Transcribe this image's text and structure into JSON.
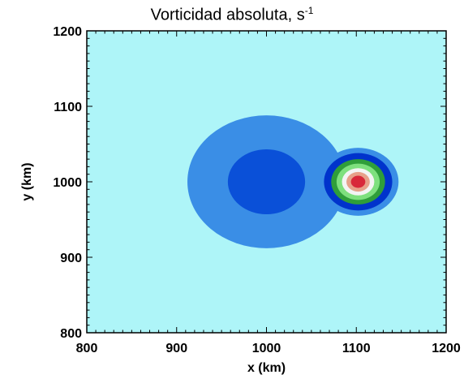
{
  "chart_data": {
    "type": "heatmap",
    "title": "Vorticidad absoluta, s",
    "title_superscript": "-1",
    "xlabel": "x (km)",
    "ylabel": "y (km)",
    "xlim": [
      800,
      1200
    ],
    "ylim": [
      800,
      1200
    ],
    "x_ticks": [
      800,
      900,
      1000,
      1100,
      1200
    ],
    "y_ticks": [
      800,
      900,
      1000,
      1100,
      1200
    ],
    "grid": false,
    "colors": {
      "background": "#aef5f8",
      "level_1": "#3a8ee6",
      "level_2": "#0a50d8",
      "ring_blue": "#0033cc",
      "ring_green_dark": "#2f9e3a",
      "ring_green_light": "#7ee07e",
      "ring_white": "#f4f4f4",
      "ring_salmon": "#e7a08a",
      "core_red": "#d8283a"
    },
    "features": [
      {
        "name": "large-vortex-outer",
        "center": [
          1000,
          1000
        ],
        "radius": 88,
        "color": "#3a8ee6"
      },
      {
        "name": "large-vortex-inner",
        "center": [
          1000,
          1000
        ],
        "radius": 43,
        "color": "#0a50d8"
      },
      {
        "name": "small-vortex-outer",
        "center": [
          1102,
          1000
        ],
        "radius": 45,
        "color": "#3a8ee6"
      },
      {
        "name": "small-vortex-ring-1",
        "center": [
          1102,
          1000
        ],
        "radius": 38,
        "color": "#0033cc"
      },
      {
        "name": "small-vortex-ring-2",
        "center": [
          1102,
          1000
        ],
        "radius": 30,
        "color": "#2f9e3a"
      },
      {
        "name": "small-vortex-ring-3",
        "center": [
          1102,
          1000
        ],
        "radius": 24,
        "color": "#7ee07e"
      },
      {
        "name": "small-vortex-ring-4",
        "center": [
          1102,
          1000
        ],
        "radius": 18,
        "color": "#f4f4f4"
      },
      {
        "name": "small-vortex-ring-5",
        "center": [
          1102,
          1000
        ],
        "radius": 13,
        "color": "#e7a08a"
      },
      {
        "name": "small-vortex-core",
        "center": [
          1102,
          1000
        ],
        "radius": 8,
        "color": "#d8283a"
      }
    ]
  }
}
